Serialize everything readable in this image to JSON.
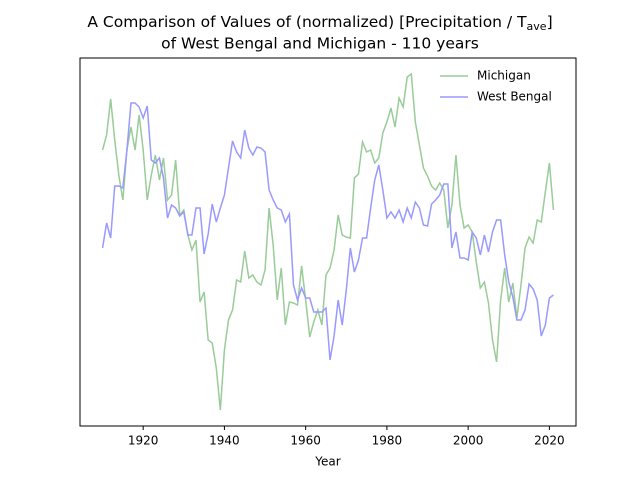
{
  "chart_data": {
    "type": "line",
    "title": [
      "A Comparison of Values of (normalized) [Precipitation / T",
      "ave",
      "]",
      "of West Bengal and Michigan - 110 years"
    ],
    "xlabel": "Year",
    "x": [
      1910,
      1911,
      1912,
      1913,
      1914,
      1915,
      1916,
      1917,
      1918,
      1919,
      1920,
      1921,
      1922,
      1923,
      1924,
      1925,
      1926,
      1927,
      1928,
      1929,
      1930,
      1931,
      1932,
      1933,
      1934,
      1935,
      1936,
      1937,
      1938,
      1939,
      1940,
      1941,
      1942,
      1943,
      1944,
      1945,
      1946,
      1947,
      1948,
      1949,
      1950,
      1951,
      1952,
      1953,
      1954,
      1955,
      1956,
      1957,
      1958,
      1959,
      1960,
      1961,
      1962,
      1963,
      1964,
      1965,
      1966,
      1967,
      1968,
      1969,
      1970,
      1971,
      1972,
      1973,
      1974,
      1975,
      1976,
      1977,
      1978,
      1979,
      1980,
      1981,
      1982,
      1983,
      1984,
      1985,
      1986,
      1987,
      1988,
      1989,
      1990,
      1991,
      1992,
      1993,
      1994,
      1995,
      1996,
      1997,
      1998,
      1999,
      2000,
      2001,
      2002,
      2003,
      2004,
      2005,
      2006,
      2007,
      2008,
      2009,
      2010,
      2011,
      2012,
      2013,
      2014,
      2015,
      2016,
      2017,
      2018,
      2019,
      2020,
      2021
    ],
    "series": [
      {
        "name": "Michigan",
        "color": "#99cc99",
        "values": [
          276,
          291,
          327,
          286,
          251,
          226,
          276,
          299,
          276,
          311,
          276,
          226,
          251,
          271,
          246,
          268,
          226,
          231,
          266,
          211,
          216,
          191,
          176,
          186,
          124,
          134,
          86,
          83,
          58,
          16,
          76,
          106,
          116,
          146,
          144,
          175,
          148,
          151,
          144,
          141,
          156,
          218,
          181,
          126,
          158,
          101,
          124,
          123,
          121,
          160,
          126,
          89,
          104,
          116,
          101,
          151,
          158,
          176,
          211,
          191,
          189,
          188,
          248,
          252,
          284,
          274,
          276,
          263,
          268,
          293,
          304,
          318,
          299,
          328,
          319,
          349,
          352,
          304,
          281,
          258,
          250,
          240,
          236,
          243,
          236,
          198,
          221,
          271,
          221,
          198,
          201,
          194,
          164,
          138,
          144,
          123,
          86,
          64,
          126,
          158,
          124,
          143,
          108,
          141,
          178,
          189,
          183,
          206,
          204,
          234,
          263,
          216
        ]
      },
      {
        "name": "West Bengal",
        "color": "#9999ff",
        "values": [
          178,
          203,
          188,
          240,
          240,
          238,
          276,
          323,
          323,
          319,
          308,
          320,
          266,
          263,
          268,
          248,
          208,
          221,
          218,
          210,
          214,
          191,
          191,
          218,
          218,
          172,
          192,
          222,
          204,
          218,
          231,
          258,
          285,
          274,
          268,
          296,
          278,
          271,
          279,
          278,
          274,
          236,
          226,
          218,
          216,
          204,
          212,
          141,
          126,
          138,
          128,
          128,
          114,
          114,
          114,
          118,
          66,
          90,
          126,
          101,
          136,
          178,
          154,
          166,
          188,
          188,
          218,
          246,
          261,
          236,
          208,
          214,
          208,
          216,
          204,
          218,
          208,
          224,
          218,
          201,
          200,
          222,
          226,
          231,
          242,
          242,
          178,
          194,
          168,
          168,
          166,
          194,
          188,
          171,
          191,
          174,
          194,
          206,
          206,
          171,
          144,
          129,
          106,
          106,
          116,
          142,
          137,
          126,
          90,
          101,
          128,
          131
        ]
      }
    ],
    "xlim": [
      1904.45,
      2026.55
    ],
    "xticks": [
      1920,
      1940,
      1960,
      1980,
      2000,
      2020
    ],
    "ylim": [
      0,
      368
    ],
    "legend": "upper right"
  }
}
